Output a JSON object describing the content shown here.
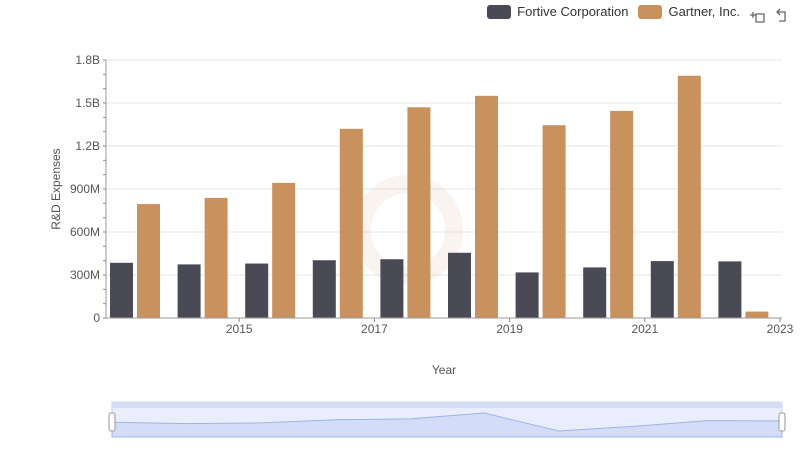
{
  "legend": {
    "items": [
      {
        "label": "Fortive Corporation",
        "color": "#4a4a57"
      },
      {
        "label": "Gartner, Inc.",
        "color": "#c9915e"
      }
    ]
  },
  "toolbar": {
    "icons": [
      "crosshair-zoom-icon",
      "reset-zoom-icon"
    ]
  },
  "chart_data": {
    "type": "bar",
    "categories": [
      2014,
      2015,
      2016,
      2017,
      2018,
      2019,
      2020,
      2021,
      2022,
      2023
    ],
    "x_tick_labels": [
      "2015",
      "2017",
      "2019",
      "2021",
      "2023"
    ],
    "series": [
      {
        "name": "Fortive Corporation",
        "color": "#4a4a57",
        "values": [
          385000000,
          374000000,
          380000000,
          403000000,
          410000000,
          455000000,
          318000000,
          353000000,
          397000000,
          395000000
        ]
      },
      {
        "name": "Gartner, Inc.",
        "color": "#c9915e",
        "values": [
          795000000,
          838000000,
          943000000,
          1320000000,
          1470000000,
          1550000000,
          1345000000,
          1445000000,
          1690000000,
          45000000
        ]
      }
    ],
    "y_ticks": [
      0,
      300000000,
      600000000,
      900000000,
      1200000000,
      1500000000,
      1800000000
    ],
    "y_tick_labels": [
      "0",
      "300M",
      "600M",
      "900M",
      "1.2B",
      "1.5B",
      "1.8B"
    ],
    "ylim": [
      0,
      1800000000
    ],
    "xlabel": "Year",
    "ylabel": "R&D Expenses",
    "grid": true,
    "legend_position": "top-right",
    "has_range_slider": true
  }
}
